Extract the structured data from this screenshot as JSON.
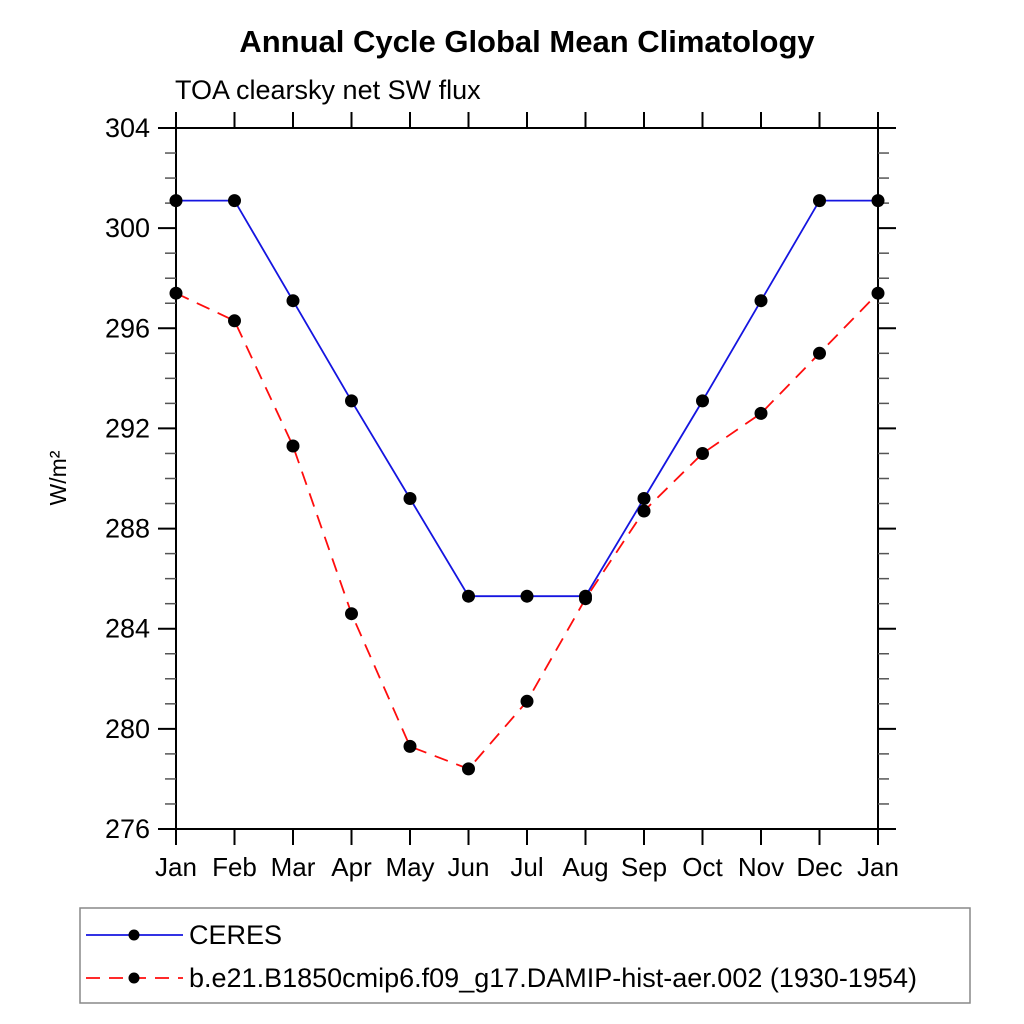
{
  "page": {
    "background": "#ffffff",
    "text_color": "#000000"
  },
  "chart_data": {
    "type": "line",
    "title": "Annual Cycle Global Mean Climatology",
    "subtitle": "TOA clearsky net SW flux",
    "xlabel": "",
    "ylabel": "W/m²",
    "categories": [
      "Jan",
      "Feb",
      "Mar",
      "Apr",
      "May",
      "Jun",
      "Jul",
      "Aug",
      "Sep",
      "Oct",
      "Nov",
      "Dec",
      "Jan"
    ],
    "ylim": [
      276,
      304
    ],
    "y_major_ticks": [
      276,
      280,
      284,
      288,
      292,
      296,
      300,
      304
    ],
    "y_minor_step": 1,
    "grid": false,
    "legend_position": "bottom-left-box",
    "axis_color": "#000000",
    "minor_tick_color": "#555555",
    "legend_border_color": "#888888",
    "marker_color": "#000000",
    "series": [
      {
        "name": "CERES",
        "color": "#1515e0",
        "line_style": "solid",
        "marker": "circle",
        "values": [
          301.1,
          301.1,
          297.1,
          293.1,
          289.2,
          285.3,
          285.3,
          285.3,
          289.2,
          293.1,
          297.1,
          301.1,
          301.1
        ]
      },
      {
        "name": "b.e21.B1850cmip6.f09_g17.DAMIP-hist-aer.002 (1930-1954)",
        "color": "#ff0d0d",
        "line_style": "dashed",
        "marker": "circle",
        "values": [
          297.4,
          296.3,
          291.3,
          284.6,
          279.3,
          278.4,
          281.1,
          285.2,
          288.7,
          291.0,
          292.6,
          295.0,
          297.4
        ]
      }
    ]
  }
}
